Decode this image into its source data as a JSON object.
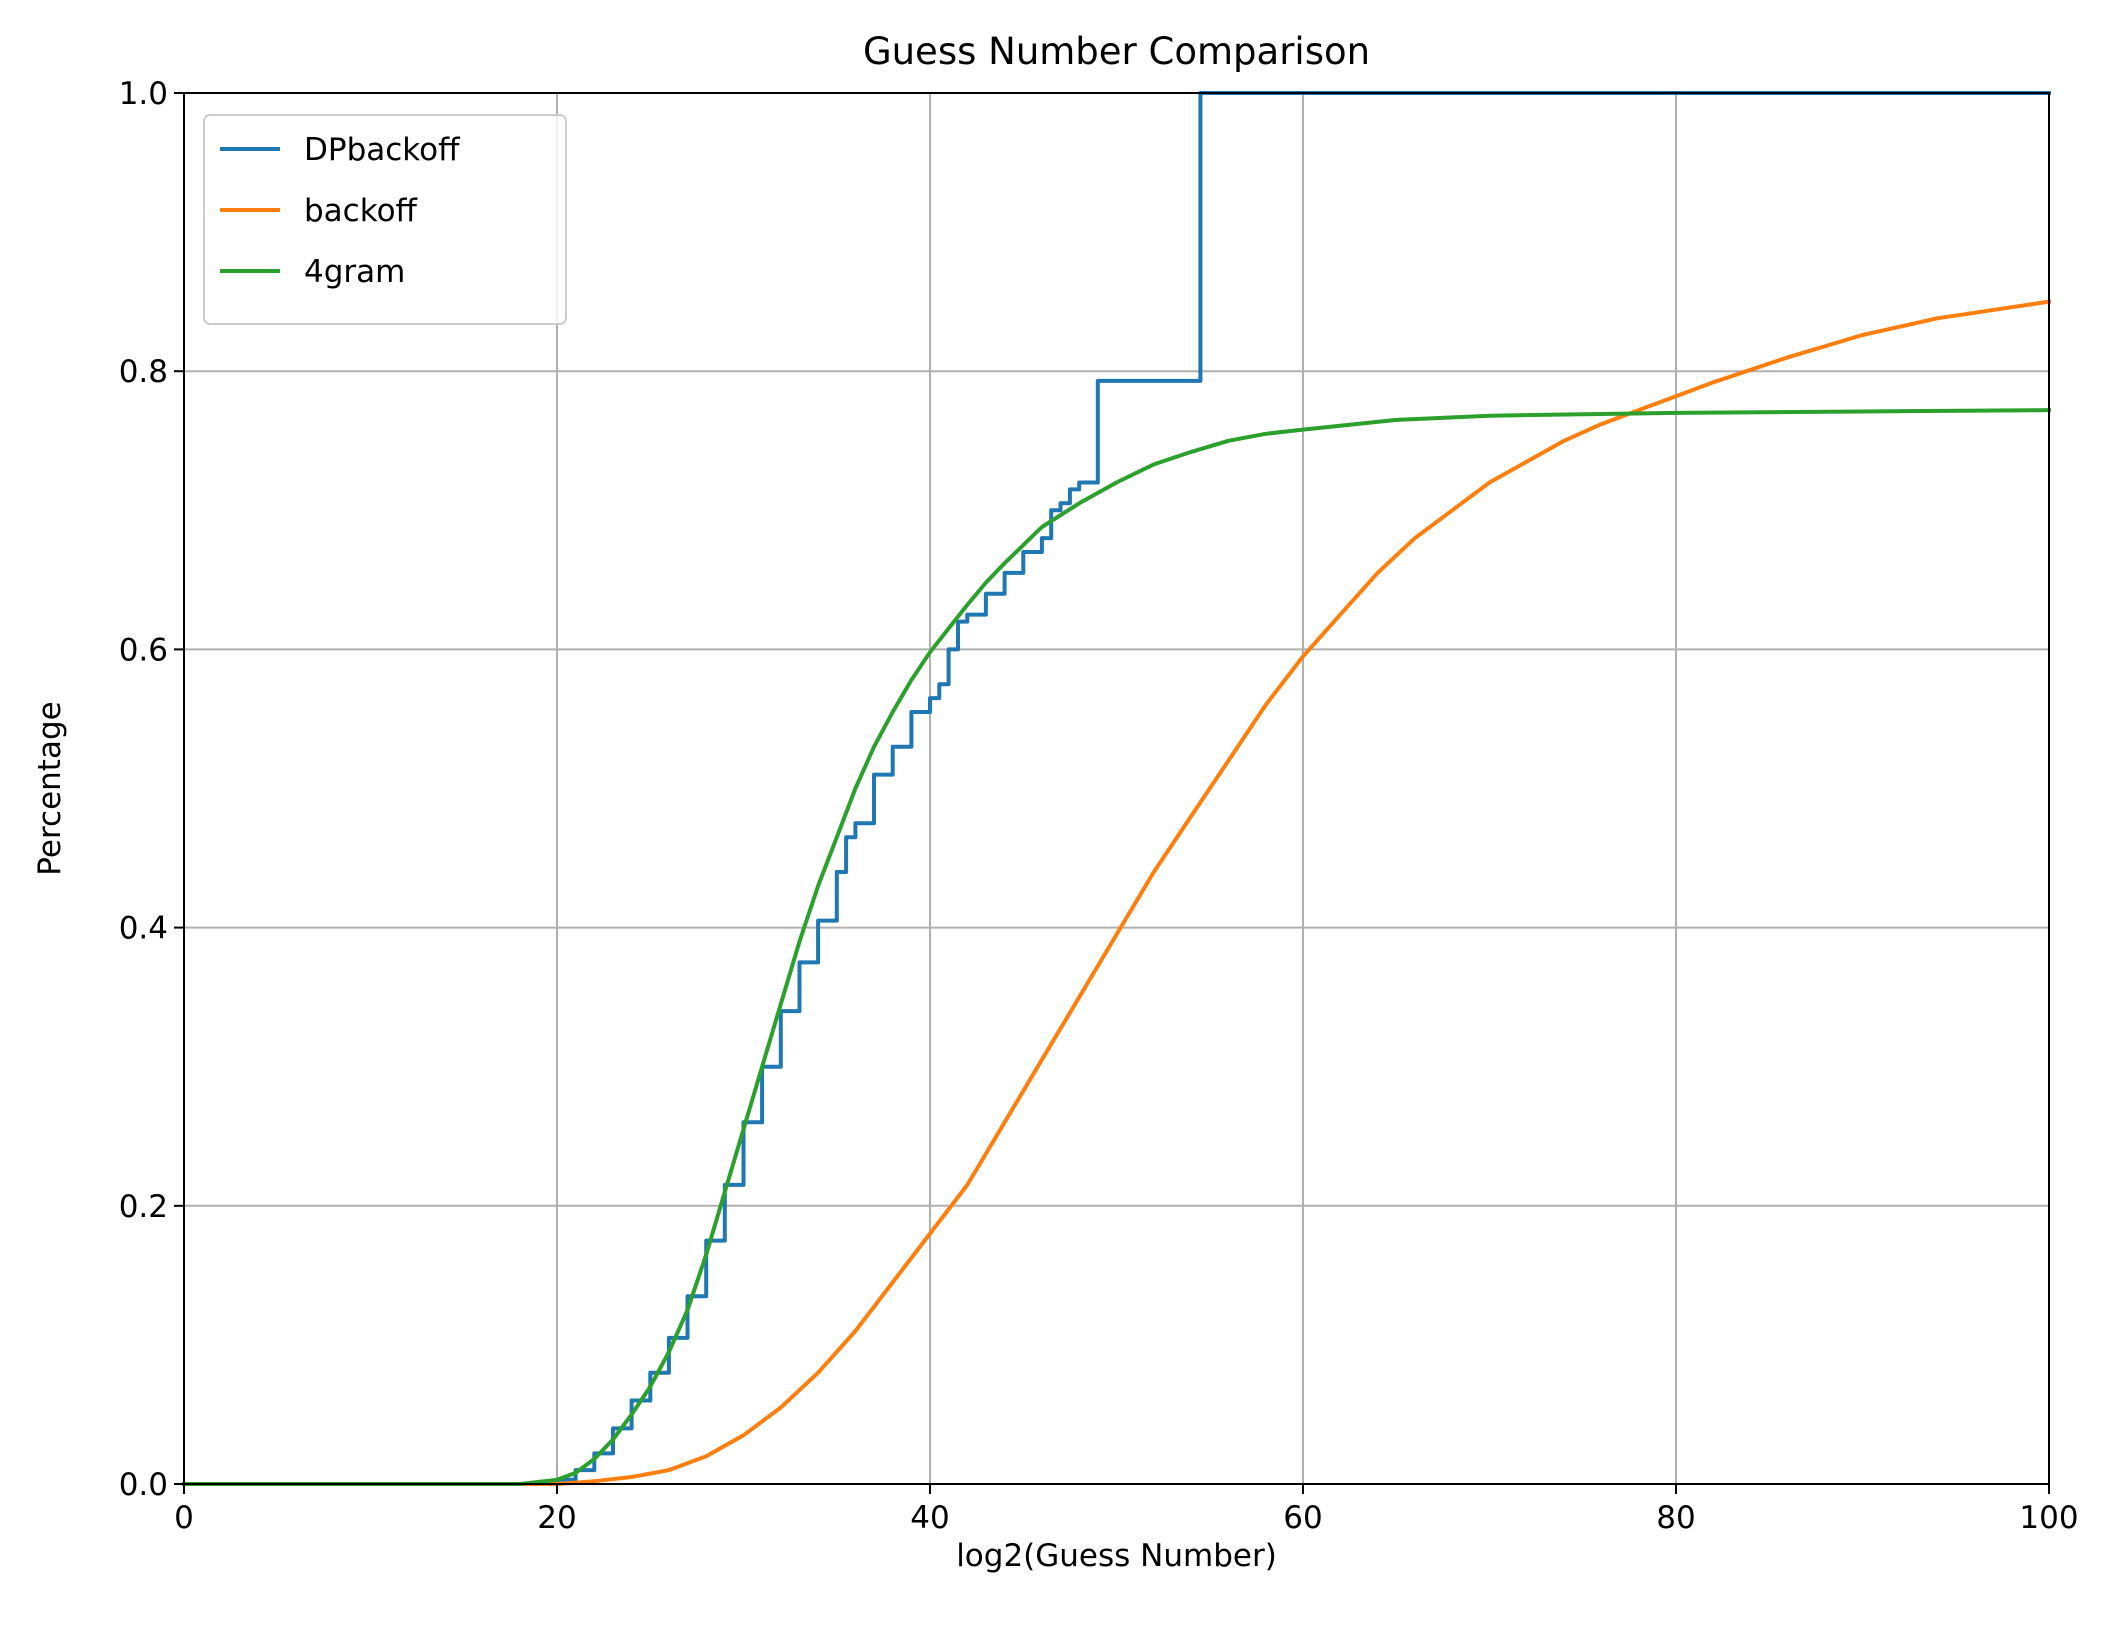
{
  "chart_data": {
    "type": "line",
    "title": "Guess Number Comparison",
    "xlabel": "log2(Guess Number)",
    "ylabel": "Percentage",
    "xlim": [
      0,
      100
    ],
    "ylim": [
      0,
      1
    ],
    "xticks": [
      0,
      20,
      40,
      60,
      80,
      100
    ],
    "yticks": [
      0.0,
      0.2,
      0.4,
      0.6,
      0.8,
      1.0
    ],
    "xtick_labels": [
      "0",
      "20",
      "40",
      "60",
      "80",
      "100"
    ],
    "ytick_labels": [
      "0.0",
      "0.2",
      "0.4",
      "0.6",
      "0.8",
      "1.0"
    ],
    "grid": true,
    "legend_position": "top-left",
    "series": [
      {
        "name": "DPbackoff",
        "color": "#1f77b4",
        "step": true,
        "x": [
          0,
          18,
          20,
          21,
          22,
          23,
          24,
          25,
          26,
          27,
          28,
          29,
          30,
          31,
          32,
          33,
          34,
          35,
          35.5,
          36,
          37,
          38,
          39,
          40,
          40.5,
          41,
          41.5,
          42,
          43,
          44,
          45,
          46,
          46.5,
          47,
          47.5,
          48,
          49,
          50,
          51,
          52,
          53,
          54,
          54.5,
          55,
          60,
          70,
          80,
          90,
          100
        ],
        "y": [
          0,
          0.0,
          0.003,
          0.01,
          0.022,
          0.04,
          0.06,
          0.08,
          0.105,
          0.135,
          0.175,
          0.215,
          0.26,
          0.3,
          0.34,
          0.375,
          0.405,
          0.44,
          0.465,
          0.475,
          0.51,
          0.53,
          0.555,
          0.565,
          0.575,
          0.6,
          0.62,
          0.625,
          0.64,
          0.655,
          0.67,
          0.68,
          0.7,
          0.705,
          0.715,
          0.72,
          0.793,
          0.793,
          0.793,
          0.793,
          0.793,
          0.793,
          1.0,
          1.0,
          1.0,
          1.0,
          1.0,
          1.0,
          1.0
        ]
      },
      {
        "name": "backoff",
        "color": "#ff7f0e",
        "step": false,
        "x": [
          0,
          20,
          22,
          24,
          26,
          28,
          30,
          32,
          34,
          36,
          38,
          40,
          42,
          44,
          46,
          48,
          50,
          52,
          54,
          56,
          58,
          60,
          62,
          64,
          66,
          68,
          70,
          72,
          74,
          76,
          78,
          80,
          82,
          84,
          86,
          88,
          90,
          92,
          94,
          96,
          98,
          100
        ],
        "y": [
          0,
          0.0,
          0.002,
          0.005,
          0.01,
          0.02,
          0.035,
          0.055,
          0.08,
          0.11,
          0.145,
          0.18,
          0.215,
          0.26,
          0.305,
          0.35,
          0.395,
          0.44,
          0.48,
          0.52,
          0.56,
          0.595,
          0.625,
          0.655,
          0.68,
          0.7,
          0.72,
          0.735,
          0.75,
          0.762,
          0.772,
          0.782,
          0.792,
          0.801,
          0.81,
          0.818,
          0.826,
          0.832,
          0.838,
          0.842,
          0.846,
          0.85
        ]
      },
      {
        "name": "4gram",
        "color": "#2ca02c",
        "step": false,
        "x": [
          0,
          18,
          20,
          21,
          22,
          23,
          24,
          25,
          26,
          27,
          28,
          29,
          30,
          31,
          32,
          33,
          34,
          35,
          36,
          37,
          38,
          39,
          40,
          41,
          42,
          43,
          44,
          45,
          46,
          48,
          50,
          52,
          54,
          56,
          58,
          60,
          65,
          70,
          80,
          90,
          100
        ],
        "y": [
          0,
          0.0,
          0.003,
          0.008,
          0.018,
          0.032,
          0.05,
          0.07,
          0.095,
          0.125,
          0.165,
          0.21,
          0.255,
          0.3,
          0.345,
          0.39,
          0.43,
          0.465,
          0.5,
          0.53,
          0.555,
          0.578,
          0.598,
          0.615,
          0.632,
          0.648,
          0.662,
          0.675,
          0.688,
          0.705,
          0.72,
          0.733,
          0.742,
          0.75,
          0.755,
          0.758,
          0.765,
          0.768,
          0.77,
          0.771,
          0.772
        ]
      }
    ]
  }
}
